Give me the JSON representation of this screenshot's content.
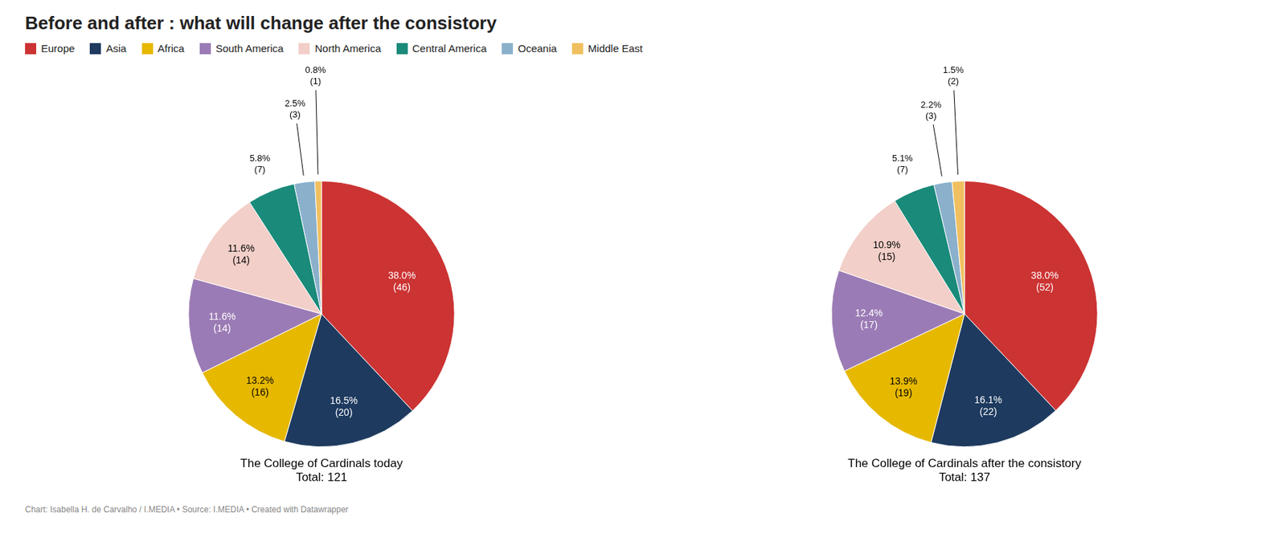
{
  "title": "Before and after : what will change after the consistory",
  "legend": "upper left",
  "annotations": [
    "Chart: Isabella H. de Carvalho / I.MEDIA • Source: I.MEDIA • Created with Datawrapper"
  ],
  "chart_data": [
    {
      "type": "pie",
      "xlabel": "The College of Cardinals today\nTotal: 121",
      "categories": [
        "Europe",
        "Asia",
        "Africa",
        "South America",
        "North America",
        "Central America",
        "Oceania",
        "Middle East"
      ],
      "values": [
        38.0,
        16.5,
        13.2,
        11.6,
        11.6,
        5.8,
        2.5,
        0.8
      ],
      "value_labels": [
        "38.0%\n(46)",
        "16.5%\n(20)",
        "13.2%\n(16)",
        "11.6%\n(14)",
        "11.6%\n(14)",
        "5.8%\n(7)",
        "2.5%\n(3)",
        "0.8%\n(1)"
      ],
      "colors": [
        "#cc3333",
        "#1e3a5f",
        "#e6b800",
        "#9b7bb5",
        "#f2cfc8",
        "#1a8a7a",
        "#8ab0cc",
        "#f0c060"
      ],
      "data_labels": true
    },
    {
      "type": "pie",
      "xlabel": "The College of Cardinals after the consistory\nTotal: 137",
      "categories": [
        "Europe",
        "Asia",
        "Africa",
        "South America",
        "North America",
        "Central America",
        "Oceania",
        "Middle East"
      ],
      "values": [
        38.0,
        16.1,
        13.9,
        12.4,
        10.9,
        5.1,
        2.2,
        1.5
      ],
      "value_labels": [
        "38.0%\n(52)",
        "16.1%\n(22)",
        "13.9%\n(19)",
        "12.4%\n(17)",
        "10.9%\n(15)",
        "5.1%\n(7)",
        "2.2%\n(3)",
        "1.5%\n(2)"
      ],
      "colors": [
        "#cc3333",
        "#1e3a5f",
        "#e6b800",
        "#9b7bb5",
        "#f2cfc8",
        "#1a8a7a",
        "#8ab0cc",
        "#f0c060"
      ],
      "data_labels": true
    }
  ]
}
